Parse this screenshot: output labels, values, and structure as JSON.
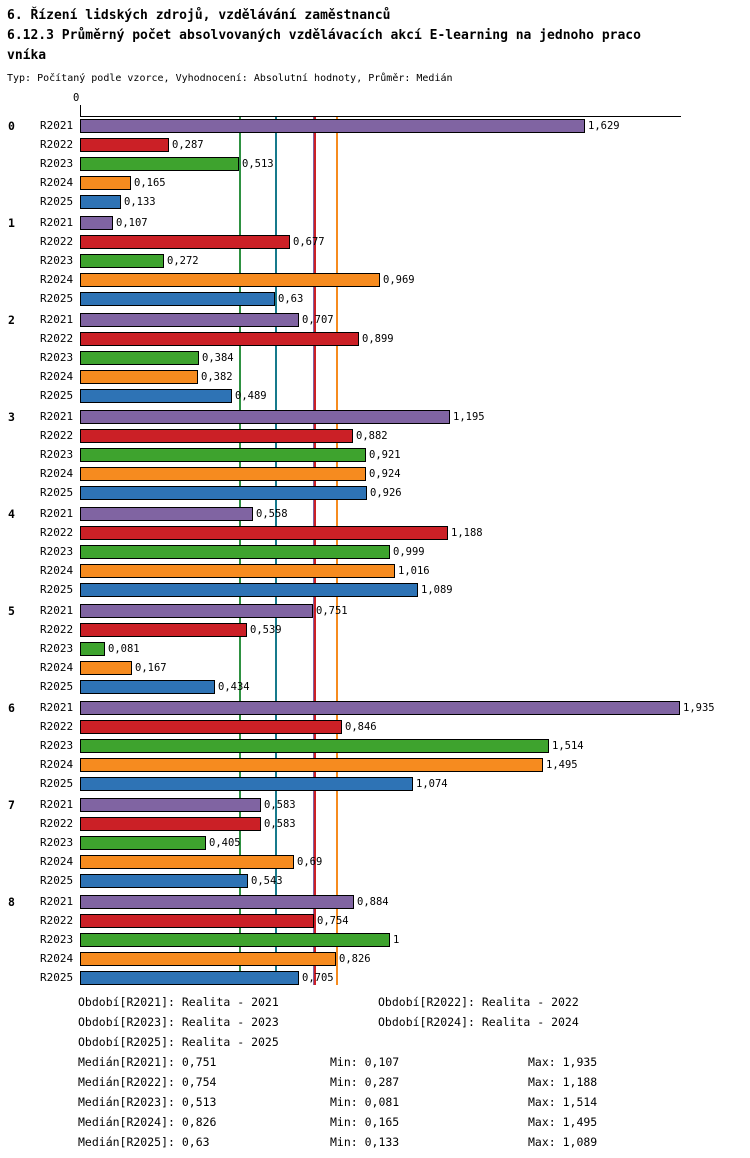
{
  "header": {
    "title_line1": "6. Řízení lidských zdrojů, vzdělávání zaměstnanců",
    "title_line2": "6.12.3 Průměrný počet absolvovaných vzdělávacích akcí E-learning na jednoho praco",
    "title_line3": "vníka",
    "meta": "Typ: Počítaný podle vzorce, Vyhodnocení: Absolutní hodnoty, Průměr: Medián"
  },
  "chart_data": {
    "type": "bar",
    "orientation": "horizontal",
    "title": "6.12.3 Průměrný počet absolvovaných vzdělávacích akcí E-learning na jednoho pracovníka",
    "xlim": [
      0,
      2
    ],
    "grid": false,
    "x_axis": {
      "origin_label": "0"
    },
    "groups": [
      "0",
      "1",
      "2",
      "3",
      "4",
      "5",
      "6",
      "7",
      "8"
    ],
    "series": [
      {
        "name": "R2021",
        "color": "#8064A2",
        "values": [
          1.629,
          0.107,
          0.707,
          1.195,
          0.558,
          0.751,
          1.935,
          0.583,
          0.884
        ],
        "labels": [
          "1,629",
          "0,107",
          "0,707",
          "1,195",
          "0,558",
          "0,751",
          "1,935",
          "0,583",
          "0,884"
        ]
      },
      {
        "name": "R2022",
        "color": "#CB2026",
        "values": [
          0.287,
          0.677,
          0.899,
          0.882,
          1.188,
          0.539,
          0.846,
          0.583,
          0.754
        ],
        "labels": [
          "0,287",
          "0,677",
          "0,899",
          "0,882",
          "1,188",
          "0,539",
          "0,846",
          "0,583",
          "0,754"
        ]
      },
      {
        "name": "R2023",
        "color": "#3EA32E",
        "values": [
          0.513,
          0.272,
          0.384,
          0.921,
          0.999,
          0.081,
          1.514,
          0.405,
          1
        ],
        "labels": [
          "0,513",
          "0,272",
          "0,384",
          "0,921",
          "0,999",
          "0,081",
          "1,514",
          "0,405",
          "1"
        ]
      },
      {
        "name": "R2024",
        "color": "#F68B1F",
        "values": [
          0.165,
          0.969,
          0.382,
          0.924,
          1.016,
          0.167,
          1.495,
          0.69,
          0.826
        ],
        "labels": [
          "0,165",
          "0,969",
          "0,382",
          "0,924",
          "1,016",
          "0,167",
          "1,495",
          "0,69",
          "0,826"
        ]
      },
      {
        "name": "R2025",
        "color": "#2E73B5",
        "values": [
          0.133,
          0.63,
          0.489,
          0.926,
          1.089,
          0.434,
          1.074,
          0.543,
          0.705
        ],
        "labels": [
          "0,133",
          "0,63",
          "0,489",
          "0,926",
          "1,089",
          "0,434",
          "1,074",
          "0,543",
          "0,705"
        ]
      }
    ],
    "median_lines": [
      {
        "series": "R2023",
        "value": 0.513,
        "color": "#2E9141"
      },
      {
        "series": "R2025",
        "value": 0.63,
        "color": "#177A8C"
      },
      {
        "series": "R2021",
        "value": 0.751,
        "color": "#8064A2"
      },
      {
        "series": "R2022",
        "value": 0.754,
        "color": "#CB2026"
      },
      {
        "series": "R2024",
        "value": 0.826,
        "color": "#F68B1F"
      }
    ],
    "legend": [
      "Období[R2021]: Realita - 2021",
      "Období[R2022]: Realita - 2022",
      "Období[R2023]: Realita - 2023",
      "Období[R2024]: Realita - 2024",
      "Období[R2025]: Realita - 2025"
    ],
    "stats": [
      {
        "series": "R2021",
        "median": "Medián[R2021]: 0,751",
        "min": "Min: 0,107",
        "max": "Max: 1,935"
      },
      {
        "series": "R2022",
        "median": "Medián[R2022]: 0,754",
        "min": "Min: 0,287",
        "max": "Max: 1,188"
      },
      {
        "series": "R2023",
        "median": "Medián[R2023]: 0,513",
        "min": "Min: 0,081",
        "max": "Max: 1,514"
      },
      {
        "series": "R2024",
        "median": "Medián[R2024]: 0,826",
        "min": "Min: 0,165",
        "max": "Max: 1,495"
      },
      {
        "series": "R2025",
        "median": "Medián[R2025]: 0,63",
        "min": "Min: 0,133",
        "max": "Max: 1,089"
      }
    ]
  }
}
